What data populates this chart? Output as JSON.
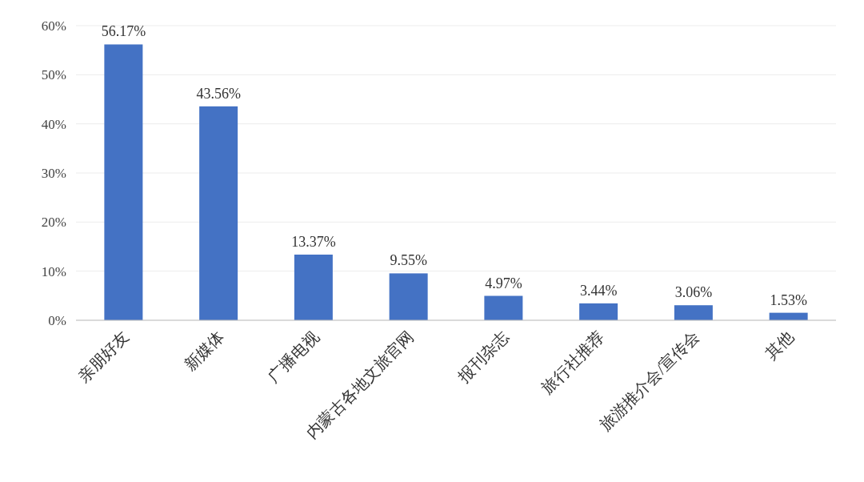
{
  "chart_data": {
    "type": "bar",
    "categories": [
      "亲朋好友",
      "新媒体",
      "广播电视",
      "内蒙古各地文旅官网",
      "报刊杂志",
      "旅行社推荐",
      "旅游推介会/宣传会",
      "其他"
    ],
    "values": [
      56.17,
      43.56,
      13.37,
      9.55,
      4.97,
      3.44,
      3.06,
      1.53
    ],
    "value_labels": [
      "56.17%",
      "43.56%",
      "13.37%",
      "9.55%",
      "4.97%",
      "3.44%",
      "3.06%",
      "1.53%"
    ],
    "color": "#4472c4",
    "ylim": [
      0,
      60
    ],
    "yticks": [
      {
        "value": 0,
        "label": "0%"
      },
      {
        "value": 10,
        "label": "10%"
      },
      {
        "value": 20,
        "label": "20%"
      },
      {
        "value": 30,
        "label": "30%"
      },
      {
        "value": 40,
        "label": "40%"
      },
      {
        "value": 50,
        "label": "50%"
      },
      {
        "value": 60,
        "label": "60%"
      }
    ],
    "grid": "y"
  }
}
